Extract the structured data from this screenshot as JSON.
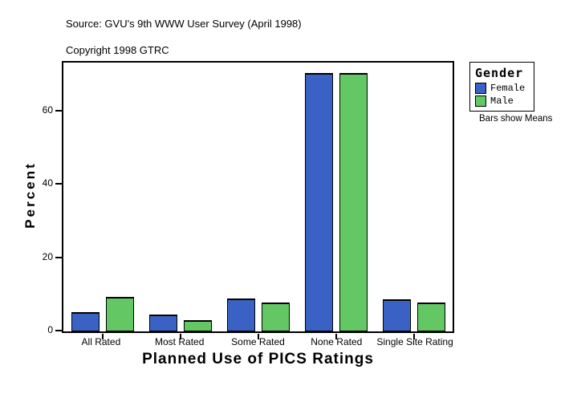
{
  "header": {
    "source_line": "Source: GVU's 9th WWW User Survey (April 1998)",
    "copyright_line": "Copyright 1998 GTRC"
  },
  "chart_data": {
    "type": "bar",
    "title": "",
    "xlabel": "Planned Use of PICS Ratings",
    "ylabel": "Percent",
    "categories": [
      "All Rated",
      "Most Rated",
      "Some Rated",
      "None Rated",
      "Single Site Rating"
    ],
    "series": [
      {
        "name": "Female",
        "color": "#3a62c4",
        "values": [
          5.3,
          4.6,
          9.0,
          70.5,
          8.8
        ]
      },
      {
        "name": "Male",
        "color": "#63c763",
        "values": [
          9.4,
          3.1,
          7.9,
          70.5,
          7.9
        ]
      }
    ],
    "ylim": [
      0,
      73.4
    ],
    "yticks": [
      0,
      20,
      40,
      60
    ],
    "grid": false,
    "legend_position": "right",
    "legend_title": "Gender",
    "footnote": "Bars show Means"
  },
  "legend": {
    "title": "Gender",
    "note": "Bars show Means"
  }
}
